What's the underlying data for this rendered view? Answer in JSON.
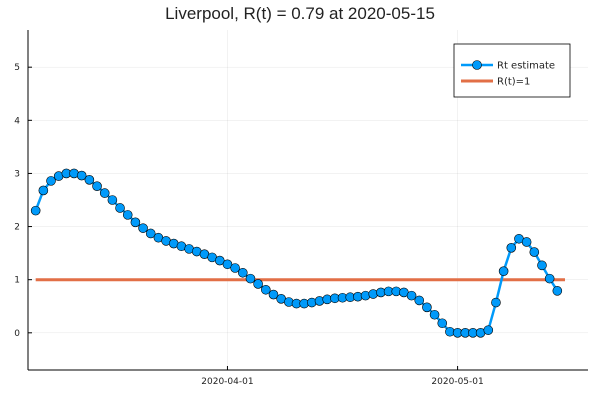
{
  "chart_data": {
    "type": "line",
    "title": "Liverpool, R(t) = 0.79 at 2020-05-15",
    "xlabel": "",
    "ylabel": "",
    "x_axis": {
      "type": "date",
      "range": [
        "2020-03-06",
        "2020-05-18"
      ],
      "ticks": [
        {
          "date": "2020-04-01",
          "label": "2020-04-01"
        },
        {
          "date": "2020-05-01",
          "label": "2020-05-01"
        }
      ]
    },
    "ylim": [
      -0.7,
      5.7
    ],
    "yticks": [
      0,
      1,
      2,
      3,
      4,
      5
    ],
    "grid": true,
    "legend_position": "top-right",
    "series": [
      {
        "name": "Rt estimate",
        "color": "#009AFA",
        "marker": "circle",
        "start_date": "2020-03-07",
        "values": [
          2.3,
          2.68,
          2.86,
          2.95,
          3.0,
          3.0,
          2.96,
          2.88,
          2.76,
          2.63,
          2.5,
          2.35,
          2.22,
          2.08,
          1.97,
          1.87,
          1.79,
          1.73,
          1.68,
          1.63,
          1.58,
          1.53,
          1.48,
          1.42,
          1.36,
          1.29,
          1.22,
          1.13,
          1.02,
          0.92,
          0.81,
          0.72,
          0.64,
          0.58,
          0.55,
          0.55,
          0.57,
          0.6,
          0.63,
          0.65,
          0.66,
          0.67,
          0.68,
          0.7,
          0.73,
          0.76,
          0.78,
          0.78,
          0.76,
          0.7,
          0.61,
          0.48,
          0.34,
          0.18,
          0.02,
          0.0,
          0.0,
          0.0,
          0.0,
          0.05,
          0.57,
          1.16,
          1.6,
          1.77,
          1.71,
          1.52,
          1.27,
          1.02,
          0.79
        ]
      },
      {
        "name": "R(t)=1",
        "color": "#E26F46",
        "constant": 1,
        "range": [
          "2020-03-07",
          "2020-05-15"
        ]
      }
    ]
  }
}
